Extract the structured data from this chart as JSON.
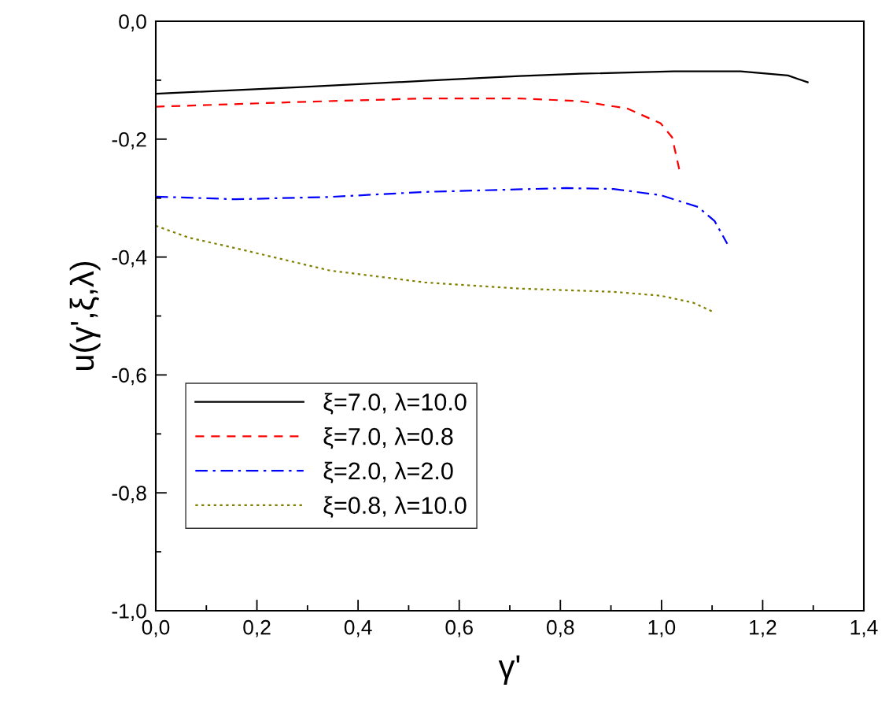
{
  "chart_data": {
    "type": "line",
    "xlabel": "γ'",
    "ylabel": "u(γ',ξ,λ)",
    "xlim": [
      0,
      1.4
    ],
    "ylim": [
      -1.0,
      0.0
    ],
    "xticks": [
      {
        "value": 0,
        "label": "0,0"
      },
      {
        "value": 0.2,
        "label": "0,2"
      },
      {
        "value": 0.4,
        "label": "0,4"
      },
      {
        "value": 0.6,
        "label": "0,6"
      },
      {
        "value": 0.8,
        "label": "0,8"
      },
      {
        "value": 1.0,
        "label": "1,0"
      },
      {
        "value": 1.2,
        "label": "1,2"
      },
      {
        "value": 1.4,
        "label": "1,4"
      }
    ],
    "yticks": [
      {
        "value": -1.0,
        "label": "-1,0"
      },
      {
        "value": -0.8,
        "label": "-0,8"
      },
      {
        "value": -0.6,
        "label": "-0,6"
      },
      {
        "value": -0.4,
        "label": "-0,4"
      },
      {
        "value": -0.2,
        "label": "-0,2"
      },
      {
        "value": 0.0,
        "label": "0,0"
      }
    ],
    "grid": false,
    "legend": "bottom left",
    "series": [
      {
        "name": "ξ=7.0, λ=10.0",
        "color": "#000000",
        "line_style": "solid",
        "x": [
          0,
          0.28,
          0.532,
          0.719,
          0.839,
          1.025,
          1.156,
          1.25,
          1.289
        ],
        "values": [
          -0.123,
          -0.112,
          -0.101,
          -0.093,
          -0.089,
          -0.085,
          -0.085,
          -0.092,
          -0.1035
        ]
      },
      {
        "name": "ξ=7.0, λ=0.8",
        "color": "#ff0000",
        "line_style": "dashed",
        "x": [
          0,
          0.28,
          0.532,
          0.719,
          0.839,
          0.932,
          0.998,
          1.021,
          1.035
        ],
        "values": [
          -0.145,
          -0.137,
          -0.131,
          -0.131,
          -0.1355,
          -0.148,
          -0.173,
          -0.197,
          -0.251
        ]
      },
      {
        "name": "ξ=2.0, λ=2.0",
        "color": "#0000ff",
        "line_style": "dashdot",
        "x": [
          0,
          0.158,
          0.345,
          0.532,
          0.811,
          0.905,
          0.998,
          1.072,
          1.105,
          1.13
        ],
        "values": [
          -0.2975,
          -0.302,
          -0.298,
          -0.2895,
          -0.283,
          -0.2845,
          -0.295,
          -0.315,
          -0.339,
          -0.3775
        ]
      },
      {
        "name": "ξ=0.8, λ=10.0",
        "color": "#808000",
        "line_style": "dotted",
        "x": [
          0,
          0.065,
          0.158,
          0.345,
          0.532,
          0.718,
          0.905,
          0.998,
          1.063,
          1.103
        ],
        "values": [
          -0.347,
          -0.367,
          -0.385,
          -0.423,
          -0.443,
          -0.4535,
          -0.459,
          -0.4655,
          -0.4775,
          -0.4935
        ]
      }
    ]
  }
}
